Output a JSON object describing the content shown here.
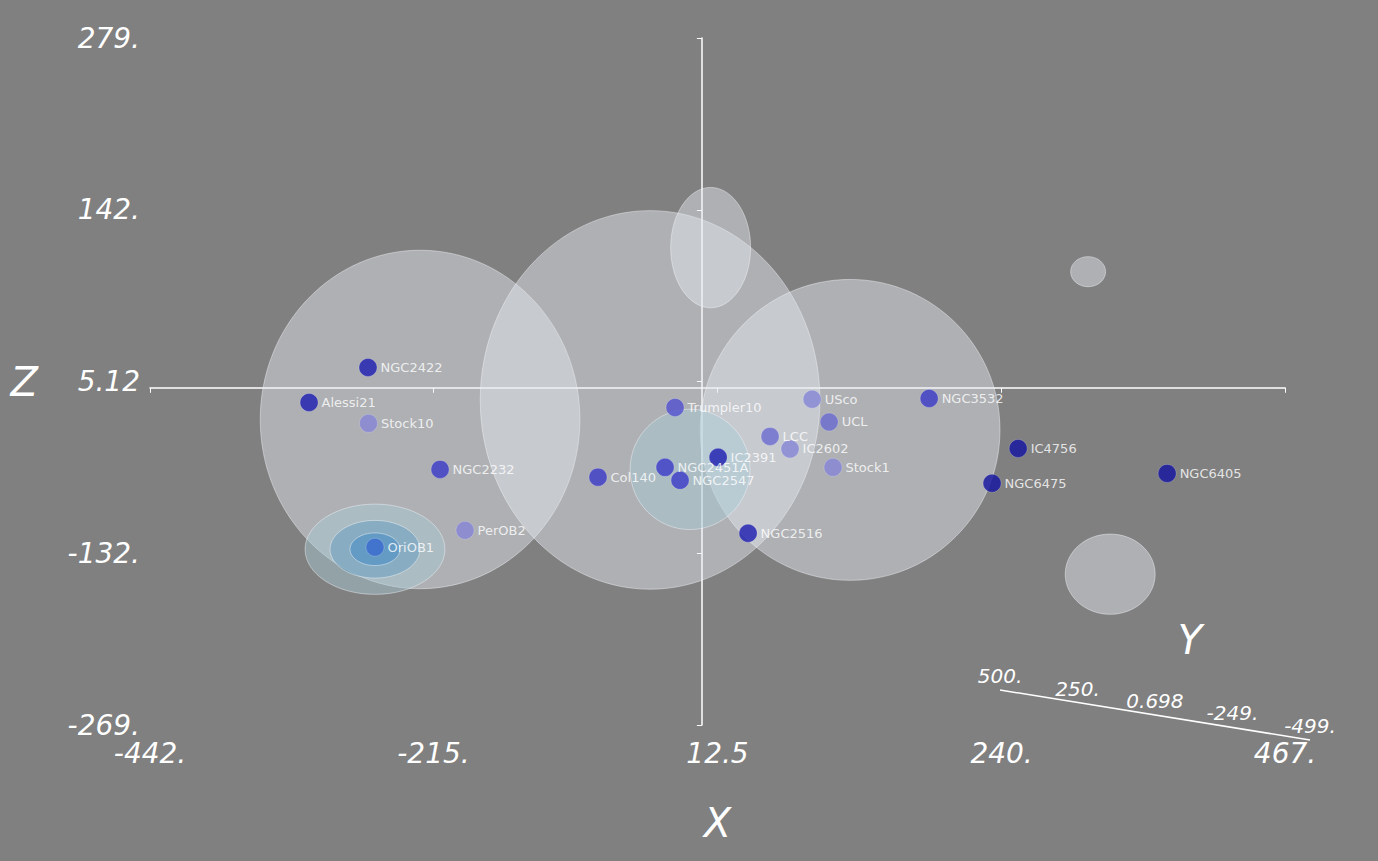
{
  "chart_data": {
    "type": "scatter3d",
    "x_label": "X",
    "y_label": "Y",
    "z_label": "Z",
    "xlim": [
      -442,
      467
    ],
    "xticks": [
      {
        "value": -442,
        "label": "-442."
      },
      {
        "value": -215,
        "label": "-215."
      },
      12.5,
      {
        "value": 240,
        "label": "240."
      },
      {
        "value": 467,
        "label": "467."
      }
    ],
    "zlim": [
      -269,
      279
    ],
    "zticks": [
      {
        "value": -269,
        "label": "-269."
      },
      {
        "value": -132,
        "label": "-132."
      },
      5.12,
      {
        "value": 142,
        "label": "142."
      },
      {
        "value": 279,
        "label": "279."
      }
    ],
    "ylim": [
      500,
      -499
    ],
    "yticks": [
      {
        "value": 500,
        "label": "500."
      },
      {
        "value": 250,
        "label": "250."
      },
      0.698,
      {
        "value": -249,
        "label": "-249."
      },
      {
        "value": -499,
        "label": "-499."
      }
    ],
    "grid": false,
    "surfaces": [
      {
        "x": -225.7,
        "z": -25.3,
        "rx": 128,
        "rz": 135,
        "color": "#e6ecf2"
      },
      {
        "x": -41.5,
        "z": -9.7,
        "rx": 136,
        "rz": 151,
        "color": "#e6ecf2"
      },
      {
        "x": 118.7,
        "z": -33.6,
        "rx": 120,
        "rz": 120,
        "color": "#e6ecf2"
      },
      {
        "x": 7,
        "z": 111.8,
        "rx": 32,
        "rz": 48,
        "color": "#e6ecf2"
      },
      {
        "x": 327,
        "z": -148.7,
        "rx": 36,
        "rz": 32,
        "color": "#e6ecf2"
      },
      {
        "x": 309.3,
        "z": 92.6,
        "rx": 14,
        "rz": 12,
        "color": "#e6ecf2"
      },
      {
        "x": -9.5,
        "z": -65.1,
        "rx": 48,
        "rz": 48,
        "color": "#a9cbd8"
      },
      {
        "x": -261.8,
        "z": -128.8,
        "rx": 56,
        "rz": 36,
        "color": "#a9cbd8"
      },
      {
        "x": -261.8,
        "z": -128.8,
        "rx": 36,
        "rz": 23,
        "color": "#5e9cc4"
      },
      {
        "x": -261.8,
        "z": -128.8,
        "rx": 20,
        "rz": 13,
        "color": "#3a86c8"
      }
    ],
    "points": [
      {
        "name": "NGC2422",
        "x": -267.4,
        "z": 16.2,
        "color": "#1c1cb0"
      },
      {
        "name": "Alessi21",
        "x": -314.6,
        "z": -11.7,
        "color": "#1c1cb0"
      },
      {
        "name": "Stock10",
        "x": -267.0,
        "z": -28.4,
        "color": "#8585d6"
      },
      {
        "name": "NGC2232",
        "x": -209.7,
        "z": -65.1,
        "color": "#3a3ac8"
      },
      {
        "name": "PerOB2",
        "x": -189.7,
        "z": -113.7,
        "color": "#8585d6"
      },
      {
        "name": "OriOB1",
        "x": -261.8,
        "z": -127.2,
        "color": "#3a6ad0"
      },
      {
        "name": "Col140",
        "x": -83.2,
        "z": -71.3,
        "color": "#3a3ac8"
      },
      {
        "name": "Trumpler10",
        "x": -21.5,
        "z": -15.7,
        "color": "#5050d0"
      },
      {
        "name": "NGC2451A",
        "x": -29.5,
        "z": -63.5,
        "color": "#3a3ac8"
      },
      {
        "name": "NGC2547",
        "x": -17.5,
        "z": -73.8,
        "color": "#3a3ac8"
      },
      {
        "name": "IC2391",
        "x": 13,
        "z": -55.5,
        "color": "#1c1cb0"
      },
      {
        "name": "IC2602",
        "x": 70.6,
        "z": -48.8,
        "color": "#8585d6"
      },
      {
        "name": "LCC",
        "x": 54.6,
        "z": -38.8,
        "color": "#6a6ad0"
      },
      {
        "name": "USco",
        "x": 88.3,
        "z": -9.1,
        "color": "#8585d6"
      },
      {
        "name": "UCL",
        "x": 101.9,
        "z": -27.3,
        "color": "#6a6ad0"
      },
      {
        "name": "Stock1",
        "x": 105,
        "z": -63.5,
        "color": "#8585d6"
      },
      {
        "name": "NGC2516",
        "x": 37,
        "z": -116,
        "color": "#1c1cb0"
      },
      {
        "name": "NGC3532",
        "x": 182,
        "z": -8.5,
        "color": "#3a3ac8"
      },
      {
        "name": "IC4756",
        "x": 253.3,
        "z": -48.4,
        "color": "#1212a0"
      },
      {
        "name": "NGC6475",
        "x": 232.4,
        "z": -76.2,
        "color": "#1212a0"
      },
      {
        "name": "NGC6405",
        "x": 372.6,
        "z": -68.3,
        "color": "#1212a0"
      }
    ]
  }
}
